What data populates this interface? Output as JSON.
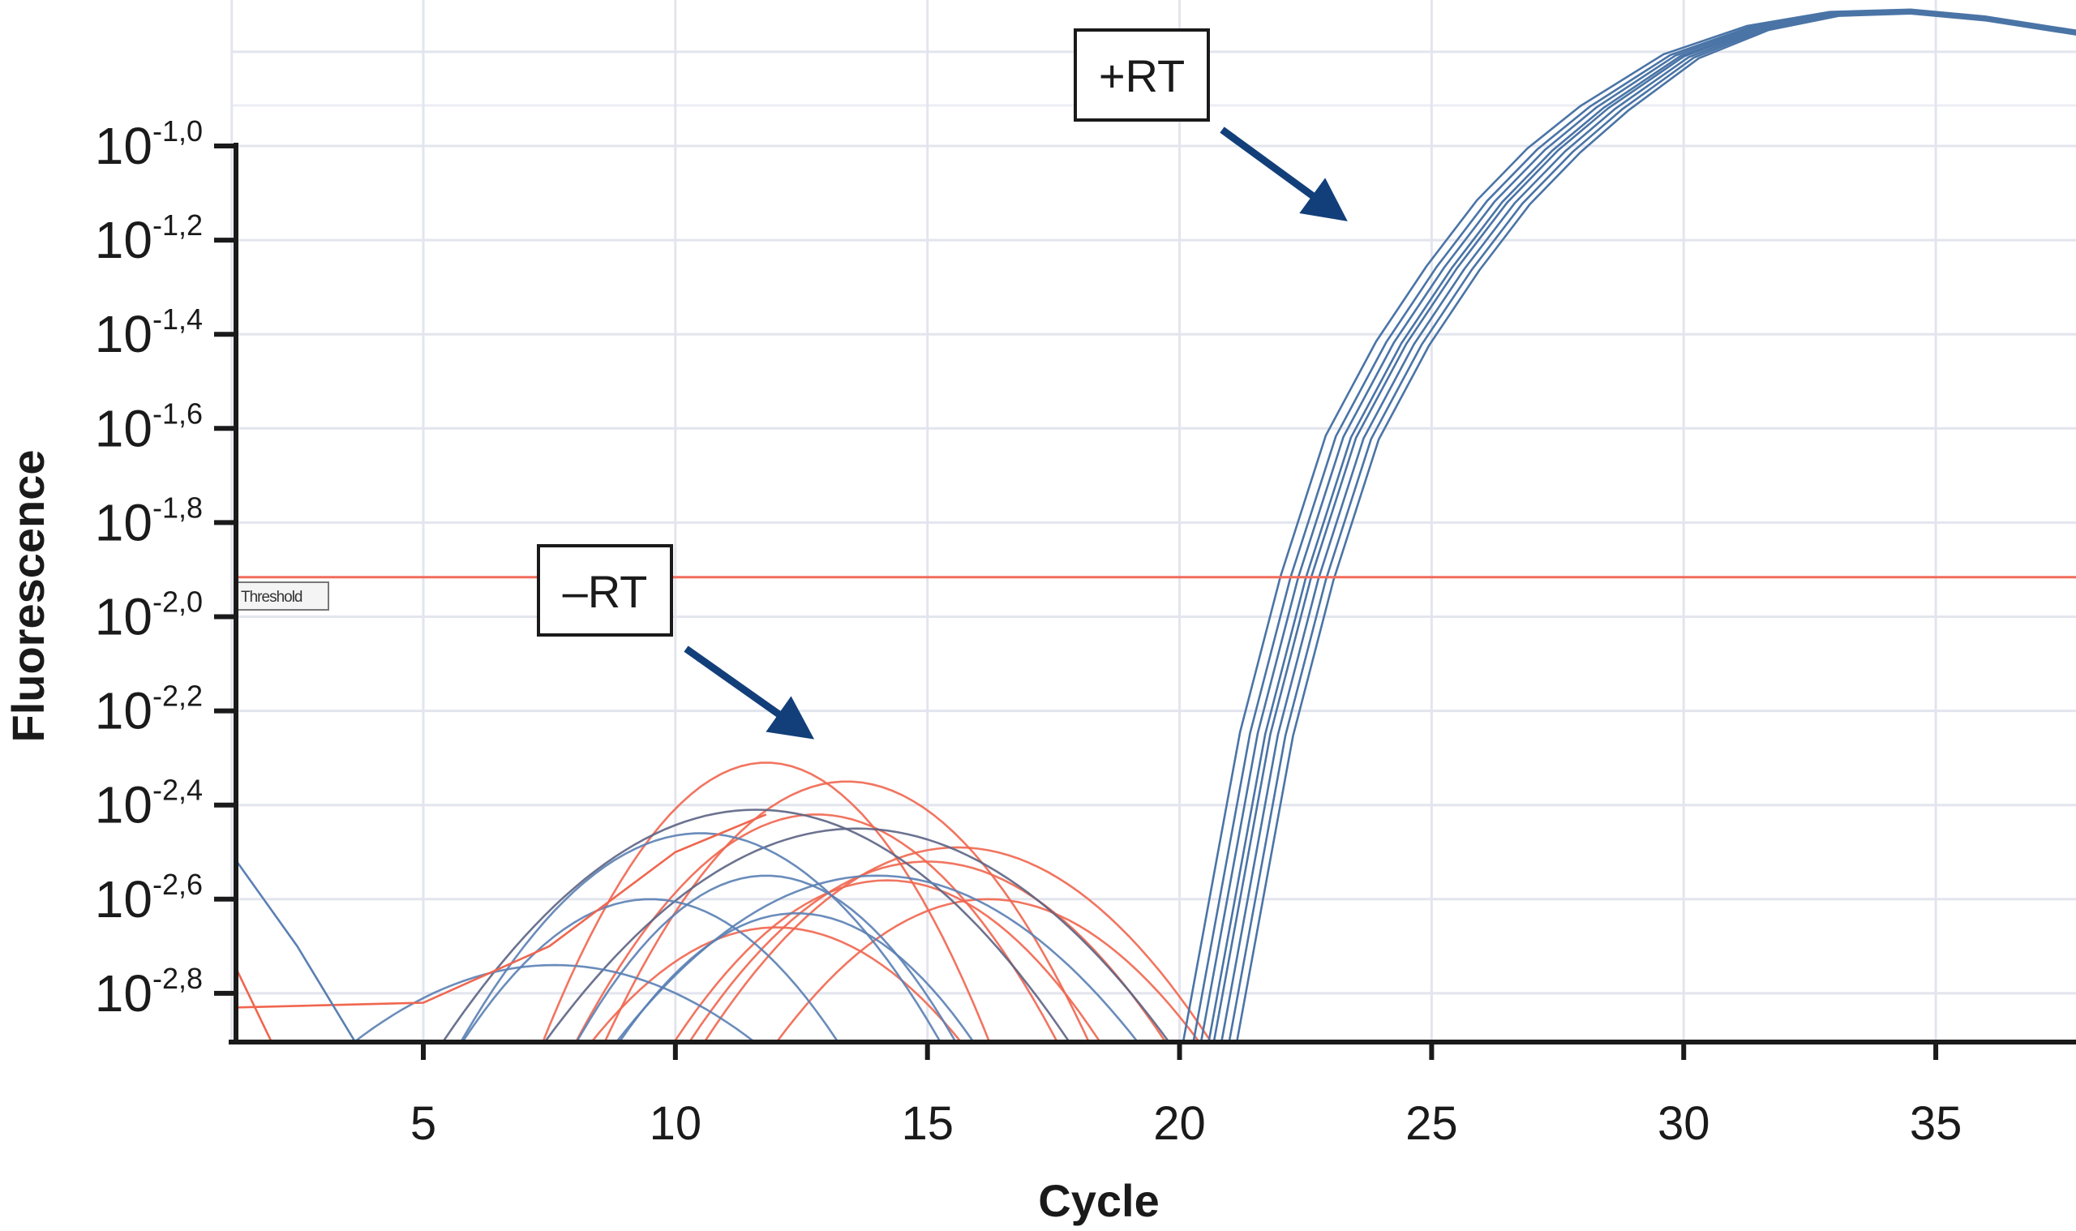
{
  "chart_data": {
    "type": "line",
    "title": "",
    "xlabel": "Cycle",
    "ylabel": "Fluorescence",
    "xscale": "linear",
    "yscale": "log10",
    "xlim": [
      1.3,
      37.8
    ],
    "ylim_log10": [
      -2.9,
      -0.69
    ],
    "x_ticks": [
      5,
      10,
      15,
      20,
      25,
      30,
      35
    ],
    "x_tick_labels": [
      "5",
      "10",
      "15",
      "20",
      "25",
      "30",
      "35"
    ],
    "y_ticks_log10": [
      -1.0,
      -1.2,
      -1.4,
      -1.6,
      -1.8,
      -2.0,
      -2.2,
      -2.4,
      -2.6,
      -2.8
    ],
    "y_tick_labels": [
      {
        "base": "10",
        "exp": "-1,0"
      },
      {
        "base": "10",
        "exp": "-1,2"
      },
      {
        "base": "10",
        "exp": "-1,4"
      },
      {
        "base": "10",
        "exp": "-1,6"
      },
      {
        "base": "10",
        "exp": "-1,8"
      },
      {
        "base": "10",
        "exp": "-2,0"
      },
      {
        "base": "10",
        "exp": "-2,2"
      },
      {
        "base": "10",
        "exp": "-2,4"
      },
      {
        "base": "10",
        "exp": "-2,6"
      },
      {
        "base": "10",
        "exp": "-2,8"
      }
    ],
    "grid": true,
    "threshold": {
      "label": "Threshold",
      "value_log10": -1.916,
      "color": "#f26b5b"
    },
    "annotations": [
      {
        "label": "+RT",
        "points_to": "amplification curves",
        "arrow_color": "#123f7a"
      },
      {
        "label": "–RT",
        "points_to": "background noise curves",
        "arrow_color": "#123f7a"
      }
    ],
    "plus_rt": {
      "name": "+RT",
      "color": "#4a74a6",
      "base_curve": [
        [
          20.6,
          -2.95
        ],
        [
          21.2,
          -2.6
        ],
        [
          21.8,
          -2.25
        ],
        [
          22.6,
          -1.92
        ],
        [
          23.5,
          -1.62
        ],
        [
          24.5,
          -1.42
        ],
        [
          25.5,
          -1.26
        ],
        [
          26.5,
          -1.12
        ],
        [
          27.5,
          -1.01
        ],
        [
          28.5,
          -0.92
        ],
        [
          30,
          -0.81
        ],
        [
          31.5,
          -0.75
        ],
        [
          33,
          -0.72
        ],
        [
          34.5,
          -0.715
        ],
        [
          36,
          -0.73
        ],
        [
          37.8,
          -0.76
        ]
      ],
      "cycle_shifts": [
        -0.6,
        -0.4,
        -0.25,
        -0.1,
        0,
        0.15,
        0.3,
        0.45
      ]
    },
    "minus_rt": {
      "name": "-RT",
      "colors": {
        "red": "#f0664f",
        "blue": "#5a80b4",
        "grey": "#5c6484"
      },
      "arcs": [
        {
          "color": "red",
          "peak_cycle": 11.8,
          "peak_log10": -2.31,
          "half_width": 4.6
        },
        {
          "color": "red",
          "peak_cycle": 13.4,
          "peak_log10": -2.35,
          "half_width": 5.0
        },
        {
          "color": "red",
          "peak_cycle": 15.0,
          "peak_log10": -2.52,
          "half_width": 5.0
        },
        {
          "color": "red",
          "peak_cycle": 15.6,
          "peak_log10": -2.49,
          "half_width": 5.3
        },
        {
          "color": "red",
          "peak_cycle": 12.8,
          "peak_log10": -2.42,
          "half_width": 5.0
        },
        {
          "color": "red",
          "peak_cycle": 14.2,
          "peak_log10": -2.56,
          "half_width": 4.5
        },
        {
          "color": "red",
          "peak_cycle": 16.2,
          "peak_log10": -2.6,
          "half_width": 4.5
        },
        {
          "color": "red",
          "peak_cycle": 12.0,
          "peak_log10": -2.66,
          "half_width": 4.0
        },
        {
          "color": "grey",
          "peak_cycle": 11.6,
          "peak_log10": -2.41,
          "half_width": 6.5
        },
        {
          "color": "grey",
          "peak_cycle": 13.6,
          "peak_log10": -2.45,
          "half_width": 6.5
        },
        {
          "color": "blue",
          "peak_cycle": 10.5,
          "peak_log10": -2.46,
          "half_width": 5.0
        },
        {
          "color": "blue",
          "peak_cycle": 7.6,
          "peak_log10": -2.74,
          "half_width": 4.5
        },
        {
          "color": "blue",
          "peak_cycle": 11.8,
          "peak_log10": -2.55,
          "half_width": 4.0
        },
        {
          "color": "blue",
          "peak_cycle": 12.4,
          "peak_log10": -2.63,
          "half_width": 3.8
        },
        {
          "color": "blue",
          "peak_cycle": 9.5,
          "peak_log10": -2.6,
          "half_width": 4.0
        },
        {
          "color": "blue",
          "peak_cycle": 14.0,
          "peak_log10": -2.55,
          "half_width": 5.5
        }
      ],
      "polylines": [
        {
          "color": "red",
          "points": [
            [
              1.3,
              -2.83
            ],
            [
              5,
              -2.82
            ],
            [
              7.5,
              -2.7
            ],
            [
              10,
              -2.5
            ],
            [
              11.8,
              -2.42
            ]
          ]
        },
        {
          "color": "red",
          "points": [
            [
              1.3,
              -2.75
            ],
            [
              2.2,
              -2.95
            ]
          ]
        },
        {
          "color": "blue",
          "points": [
            [
              1.3,
              -2.52
            ],
            [
              2.5,
              -2.7
            ],
            [
              3.8,
              -2.93
            ]
          ]
        }
      ]
    }
  }
}
